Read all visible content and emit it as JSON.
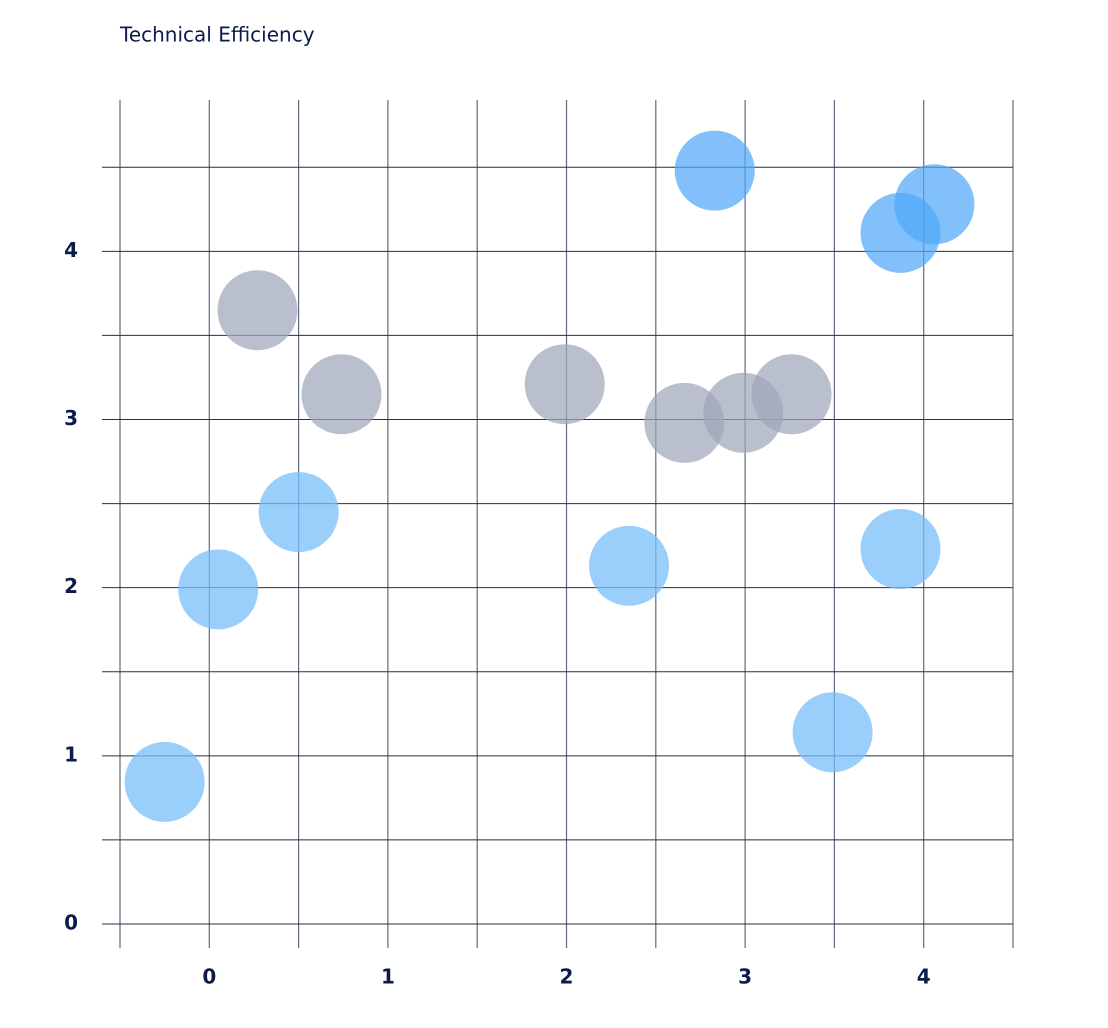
{
  "chart_data": {
    "type": "scatter",
    "title": "Technical Efficiency",
    "xlim": [
      -0.5,
      4.5
    ],
    "ylim": [
      0,
      4.9
    ],
    "xticks": [
      0,
      1,
      2,
      3,
      4
    ],
    "yticks": [
      0,
      1,
      2,
      3,
      4
    ],
    "xminor": [
      -0.5,
      0.5,
      1.5,
      2.5,
      3.5,
      4.5
    ],
    "yminor": [
      0.5,
      1.5,
      2.5,
      3.5,
      4.5
    ],
    "grid": true,
    "series": [
      {
        "color": "rgba(120,190,250,0.75)",
        "x": [
          -0.25,
          0.05,
          0.5,
          2.35,
          3.87,
          3.49
        ],
        "values": [
          0.845,
          1.99,
          2.45,
          2.13,
          2.23,
          1.14
        ]
      },
      {
        "color": "rgba(80,168,250,0.72)",
        "x": [
          2.83,
          3.87,
          4.06
        ],
        "values": [
          4.48,
          4.11,
          4.28
        ]
      },
      {
        "color": "rgba(160,166,186,0.72)",
        "x": [
          0.27,
          0.74,
          1.99,
          2.66,
          2.99,
          3.26
        ],
        "values": [
          3.65,
          3.15,
          3.21,
          2.98,
          3.04,
          3.15
        ]
      }
    ]
  }
}
